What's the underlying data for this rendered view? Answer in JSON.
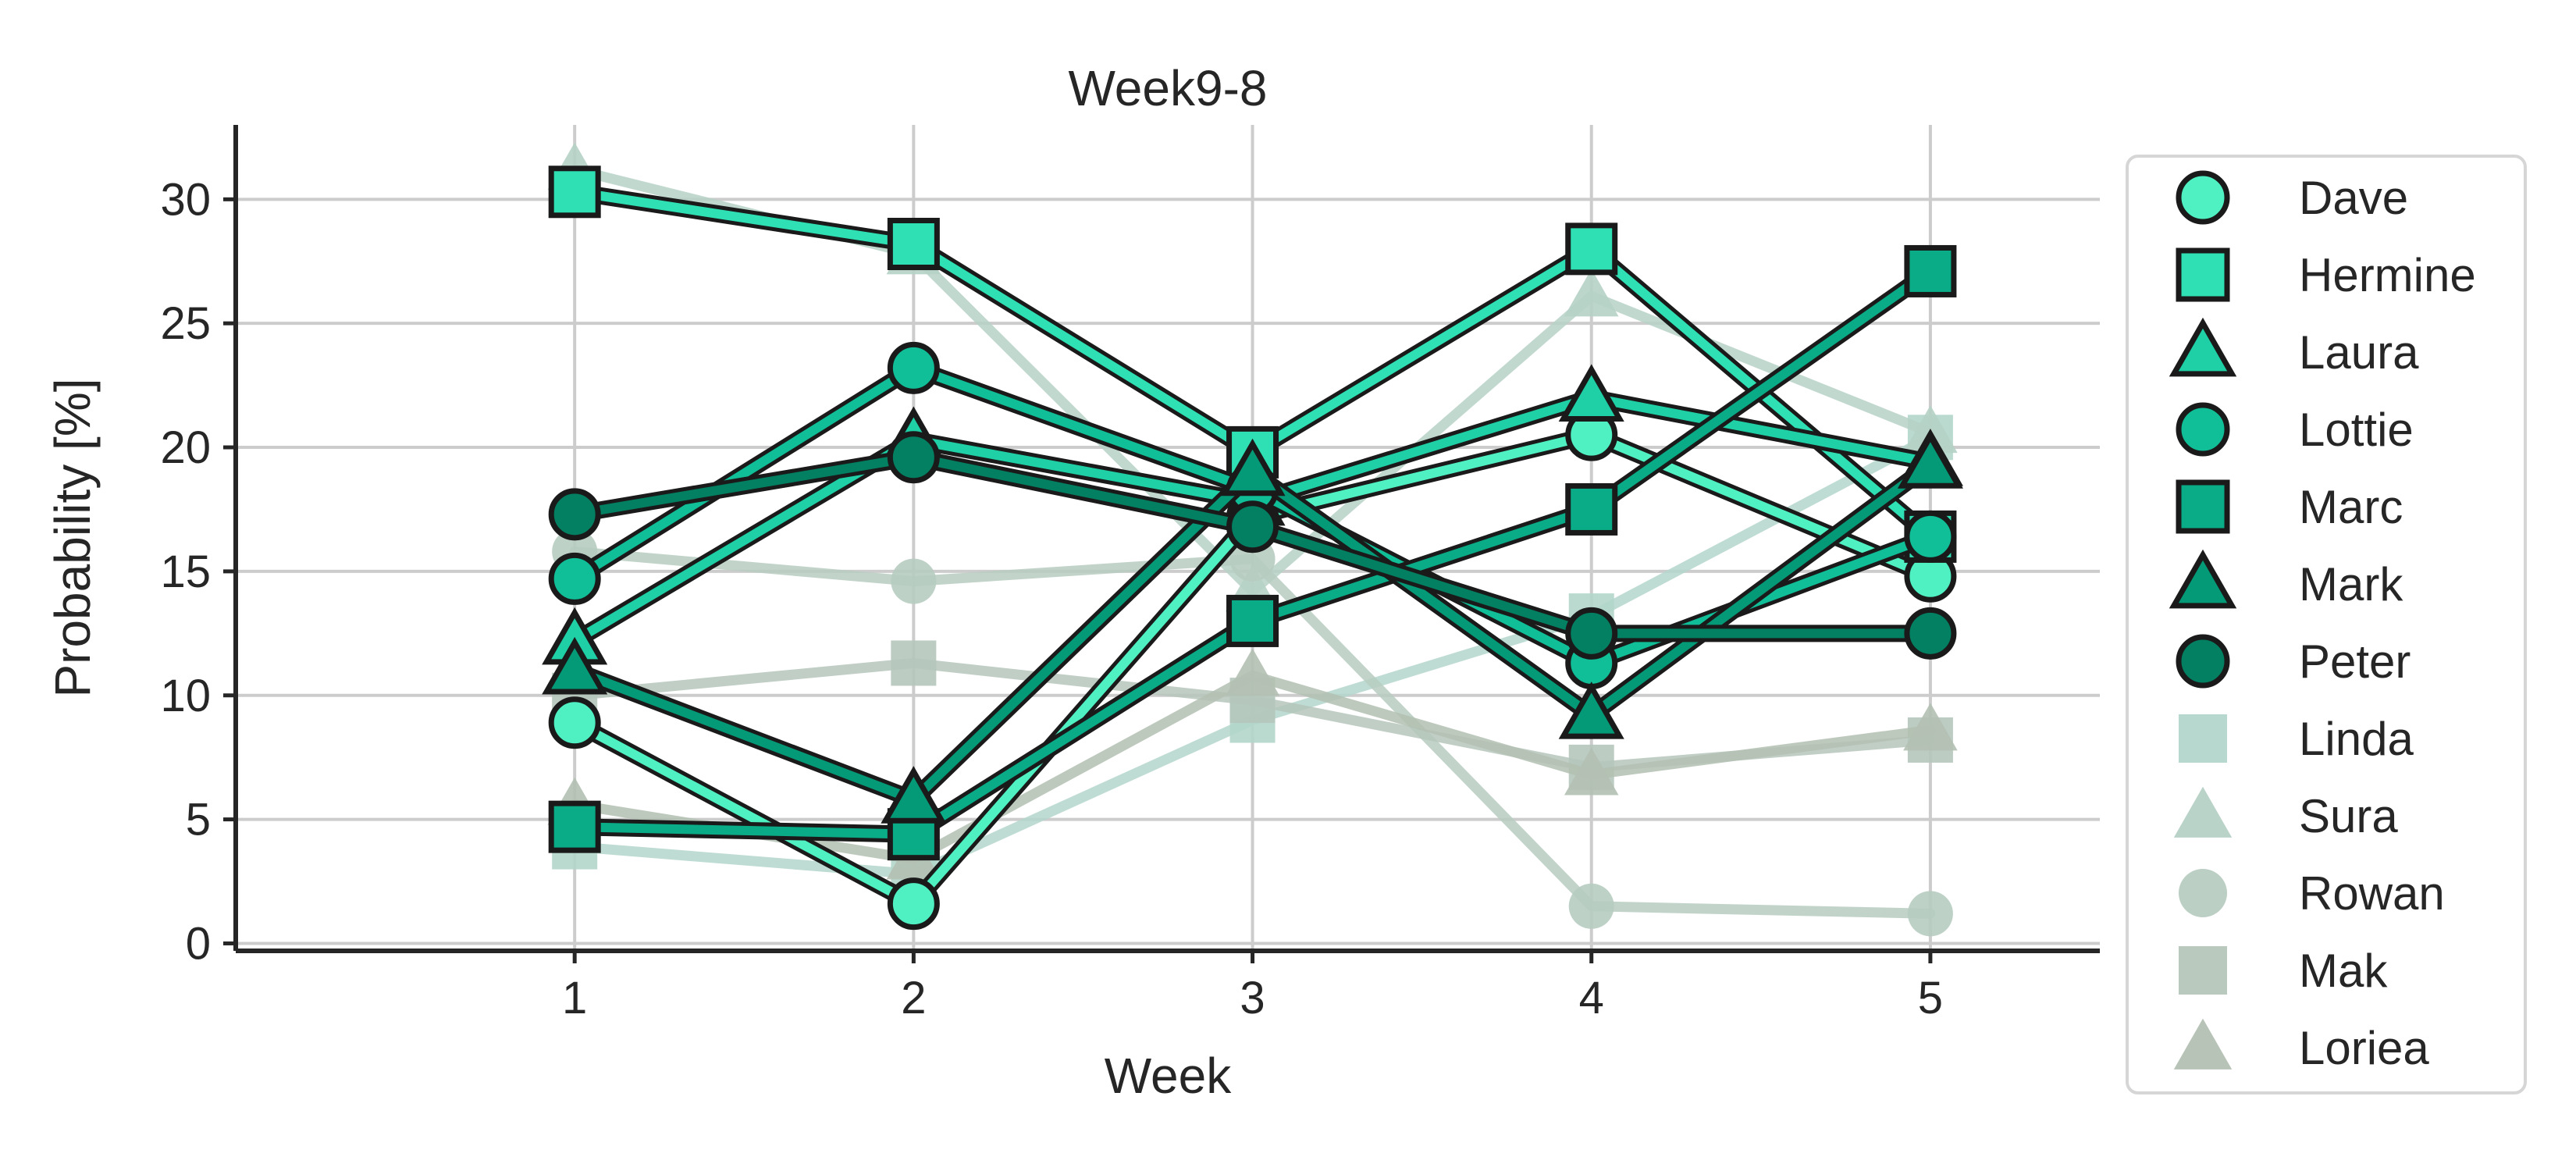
{
  "chart_data": {
    "type": "line",
    "title": "Week9-8",
    "xlabel": "Week",
    "ylabel": "Probability [%]",
    "x": [
      1,
      2,
      3,
      4,
      5
    ],
    "xlim": [
      0,
      5.5
    ],
    "ylim": [
      -0.3,
      33
    ],
    "xticks": [
      1,
      2,
      3,
      4,
      5
    ],
    "yticks": [
      0,
      5,
      10,
      15,
      20,
      25,
      30
    ],
    "grid": true,
    "legend_position": "right",
    "series": [
      {
        "name": "Dave",
        "values": [
          8.9,
          1.6,
          17.2,
          20.5,
          14.8
        ],
        "marker": "circle",
        "color": "#4ff0c2",
        "highlight": true
      },
      {
        "name": "Hermine",
        "values": [
          30.3,
          28.2,
          19.8,
          28.0,
          16.4
        ],
        "marker": "square",
        "color": "#2ee0b4",
        "highlight": true
      },
      {
        "name": "Laura",
        "values": [
          12.2,
          20.3,
          17.8,
          22.0,
          19.4
        ],
        "marker": "triangle",
        "color": "#1fd0a6",
        "highlight": true
      },
      {
        "name": "Lottie",
        "values": [
          14.7,
          23.2,
          18.3,
          11.3,
          16.4
        ],
        "marker": "circle",
        "color": "#10bf98",
        "highlight": true
      },
      {
        "name": "Marc",
        "values": [
          4.7,
          4.4,
          13.0,
          17.5,
          27.1
        ],
        "marker": "square",
        "color": "#0aac87",
        "highlight": true
      },
      {
        "name": "Mark",
        "values": [
          11.0,
          5.8,
          19.0,
          9.2,
          19.3
        ],
        "marker": "triangle",
        "color": "#059a77",
        "highlight": true
      },
      {
        "name": "Peter",
        "values": [
          17.3,
          19.6,
          16.8,
          12.5,
          12.5
        ],
        "marker": "circle",
        "color": "#037f61",
        "highlight": true
      },
      {
        "name": "Linda",
        "values": [
          3.9,
          2.8,
          9.0,
          13.2,
          20.4
        ],
        "marker": "square",
        "color": "#b3d6cb",
        "highlight": false
      },
      {
        "name": "Sura",
        "values": [
          31.2,
          27.8,
          14.2,
          26.1,
          20.6
        ],
        "marker": "triangle",
        "color": "#b6d1c5",
        "highlight": false
      },
      {
        "name": "Rowan",
        "values": [
          15.8,
          14.6,
          15.5,
          1.5,
          1.2
        ],
        "marker": "circle",
        "color": "#b7ccc1",
        "highlight": false
      },
      {
        "name": "Mak",
        "values": [
          10.0,
          11.3,
          9.8,
          7.1,
          8.2
        ],
        "marker": "square",
        "color": "#b5c6bb",
        "highlight": false
      },
      {
        "name": "Loriea",
        "values": [
          5.6,
          3.4,
          10.8,
          6.8,
          8.6
        ],
        "marker": "triangle",
        "color": "#b3c0b2",
        "highlight": false
      }
    ]
  }
}
